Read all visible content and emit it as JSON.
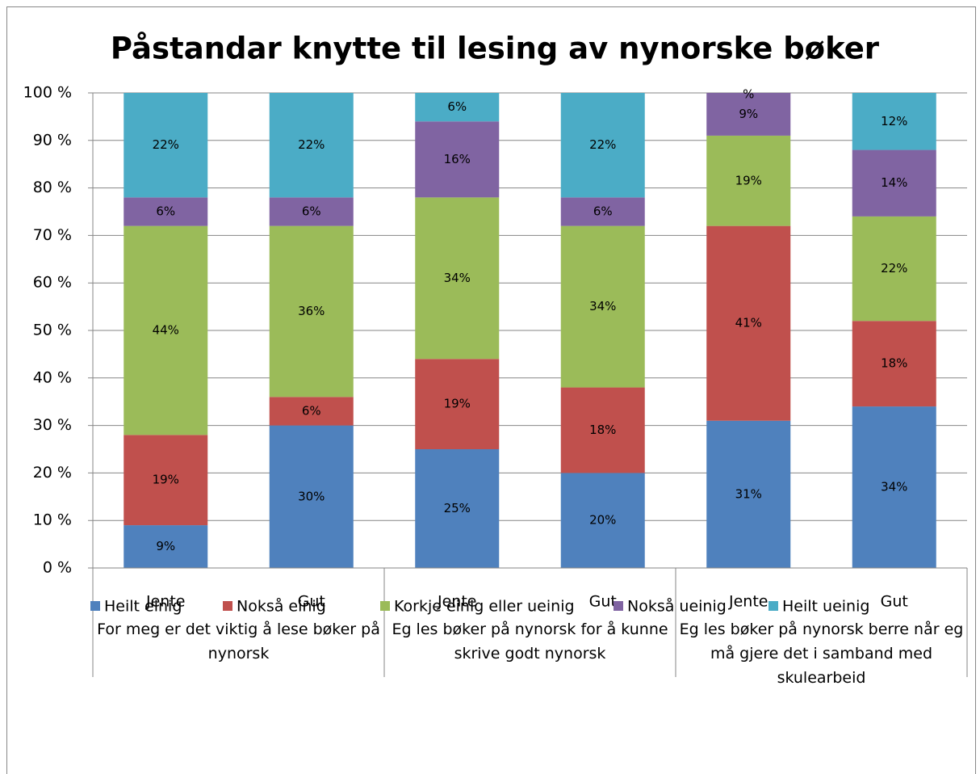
{
  "chart_data": {
    "type": "stacked_bar",
    "title": "Påstandar knytte til lesing av nynorske bøker",
    "categories": [
      "Jente",
      "Gut",
      "Jente",
      "Gut",
      "Jente",
      "Gut"
    ],
    "groups": [
      "For meg er det viktig å lese bøker på nynorsk",
      "Eg les bøker på nynorsk for å kunne skrive godt nynorsk",
      "Eg les bøker på nynorsk berre når eg må gjere det i samband med skulearbeid"
    ],
    "series": [
      {
        "name": "Heilt einig",
        "color": "#4f81bd",
        "values": [
          9,
          30,
          25,
          20,
          31,
          34
        ],
        "value_labels": [
          "9%",
          "30%",
          "25%",
          "20%",
          "31%",
          "34%"
        ]
      },
      {
        "name": "Nokså einig",
        "color": "#c0504d",
        "values": [
          19,
          6,
          19,
          18,
          41,
          18
        ],
        "value_labels": [
          "19%",
          "6%",
          "19%",
          "18%",
          "41%",
          "18%"
        ]
      },
      {
        "name": "Korkje einig eller ueinig",
        "color": "#9bbb59",
        "values": [
          44,
          36,
          34,
          34,
          19,
          22
        ],
        "value_labels": [
          "44%",
          "36%",
          "34%",
          "34%",
          "19%",
          "22%"
        ]
      },
      {
        "name": "Nokså ueinig",
        "color": "#8064a2",
        "values": [
          6,
          6,
          16,
          6,
          9,
          14
        ],
        "value_labels": [
          "6%",
          "6%",
          "16%",
          "6%",
          "9%",
          "14%"
        ]
      },
      {
        "name": "Heilt ueinig",
        "color": "#4bacc6",
        "values": [
          22,
          22,
          6,
          22,
          0,
          12
        ],
        "value_labels": [
          "22%",
          "22%",
          "6%",
          "22%",
          "%",
          "12%"
        ]
      }
    ],
    "ylim": [
      0,
      100
    ],
    "yticks": [
      {
        "value": 0,
        "label": "0 %"
      },
      {
        "value": 10,
        "label": "10 %"
      },
      {
        "value": 20,
        "label": "20 %"
      },
      {
        "value": 30,
        "label": "30 %"
      },
      {
        "value": 40,
        "label": "40 %"
      },
      {
        "value": 50,
        "label": "50 %"
      },
      {
        "value": 60,
        "label": "60 %"
      },
      {
        "value": 70,
        "label": "70 %"
      },
      {
        "value": 80,
        "label": "80 %"
      },
      {
        "value": 90,
        "label": "90 %"
      },
      {
        "value": 100,
        "label": "100 %"
      }
    ],
    "grid": true,
    "legend": "bottom"
  }
}
